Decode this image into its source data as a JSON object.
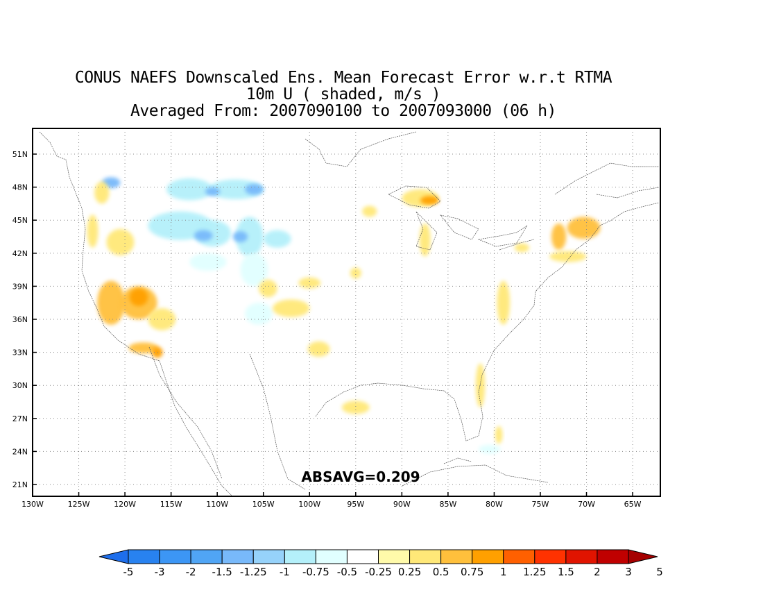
{
  "title": {
    "line1": "CONUS NAEFS Downscaled Ens. Mean Forecast Error w.r.t RTMA",
    "line2": "10m U ( shaded, m/s )",
    "line3": "Averaged From: 2007090100 to 2007093000 (06 h)"
  },
  "annotation": "ABSAVG=0.209",
  "lat_labels": [
    "51N",
    "48N",
    "45N",
    "42N",
    "39N",
    "36N",
    "33N",
    "30N",
    "27N",
    "24N",
    "21N"
  ],
  "lon_labels": [
    "130W",
    "125W",
    "120W",
    "115W",
    "110W",
    "105W",
    "100W",
    "95W",
    "90W",
    "85W",
    "80W",
    "75W",
    "70W",
    "65W"
  ],
  "colorbar": {
    "labels": [
      "-5",
      "-3",
      "-2",
      "-1.5",
      "-1.25",
      "-1",
      "-0.75",
      "-0.5",
      "-0.25",
      "0.25",
      "0.5",
      "0.75",
      "1",
      "1.25",
      "1.5",
      "2",
      "3",
      "5"
    ],
    "colors": [
      "#1e6eeb",
      "#2882f0",
      "#3c96f5",
      "#50a5f5",
      "#78b9fa",
      "#96d2fa",
      "#b4f0fa",
      "#e1ffff",
      "#ffffff",
      "#fffaaa",
      "#ffe878",
      "#ffc03c",
      "#ffa000",
      "#ff6000",
      "#ff3200",
      "#e11400",
      "#c00000",
      "#a50000"
    ]
  },
  "chart_data": {
    "type": "heatmap",
    "variable": "10m U",
    "units": "m/s",
    "annotation": "ABSAVG=0.209",
    "lat_range": [
      20,
      53
    ],
    "lon_range": [
      -130,
      -62
    ],
    "blobs": [
      {
        "lon": -121.5,
        "lat": 48.4,
        "rx": 1.0,
        "ry": 0.5,
        "value": -1.25
      },
      {
        "lon": -113.0,
        "lat": 47.8,
        "rx": 2.5,
        "ry": 1.0,
        "value": -0.75
      },
      {
        "lon": -108.0,
        "lat": 47.8,
        "rx": 3.0,
        "ry": 0.9,
        "value": -0.75
      },
      {
        "lon": -106.0,
        "lat": 47.8,
        "rx": 1.0,
        "ry": 0.5,
        "value": -1.25
      },
      {
        "lon": -110.5,
        "lat": 47.6,
        "rx": 0.8,
        "ry": 0.4,
        "value": -1.25
      },
      {
        "lon": -114.0,
        "lat": 44.5,
        "rx": 3.5,
        "ry": 1.3,
        "value": -0.75
      },
      {
        "lon": -110.5,
        "lat": 43.8,
        "rx": 2.0,
        "ry": 1.2,
        "value": -0.75
      },
      {
        "lon": -111.5,
        "lat": 43.6,
        "rx": 1.0,
        "ry": 0.5,
        "value": -1.25
      },
      {
        "lon": -106.5,
        "lat": 43.5,
        "rx": 1.5,
        "ry": 1.8,
        "value": -0.75
      },
      {
        "lon": -107.5,
        "lat": 43.5,
        "rx": 0.8,
        "ry": 0.5,
        "value": -1.25
      },
      {
        "lon": -103.5,
        "lat": 43.3,
        "rx": 1.5,
        "ry": 0.8,
        "value": -0.75
      },
      {
        "lon": -111.0,
        "lat": 41.2,
        "rx": 2.0,
        "ry": 0.8,
        "value": -0.5
      },
      {
        "lon": -106.0,
        "lat": 40.5,
        "rx": 1.5,
        "ry": 1.5,
        "value": -0.5
      },
      {
        "lon": -105.5,
        "lat": 36.5,
        "rx": 1.5,
        "ry": 1.0,
        "value": -0.5
      },
      {
        "lon": -108.0,
        "lat": 33.5,
        "rx": 3.0,
        "ry": 1.0,
        "value": -0.25
      },
      {
        "lon": -118.0,
        "lat": 35.0,
        "rx": 2.0,
        "ry": 1.2,
        "value": -0.25
      },
      {
        "lon": -115.0,
        "lat": 39.0,
        "rx": 3.0,
        "ry": 2.0,
        "value": -0.25
      },
      {
        "lon": -90.0,
        "lat": 33.5,
        "rx": 2.5,
        "ry": 0.7,
        "value": -0.25
      },
      {
        "lon": -89.0,
        "lat": 37.0,
        "rx": 1.5,
        "ry": 0.8,
        "value": -0.25
      },
      {
        "lon": -80.5,
        "lat": 27.5,
        "rx": 0.7,
        "ry": 2.0,
        "value": -0.25
      },
      {
        "lon": -80.5,
        "lat": 24.2,
        "rx": 1.2,
        "ry": 0.4,
        "value": -0.5
      },
      {
        "lon": -122.5,
        "lat": 47.5,
        "rx": 0.8,
        "ry": 1.0,
        "value": 0.5
      },
      {
        "lon": -123.5,
        "lat": 44.0,
        "rx": 0.6,
        "ry": 1.5,
        "value": 0.5
      },
      {
        "lon": -120.5,
        "lat": 43.0,
        "rx": 1.5,
        "ry": 1.2,
        "value": 0.5
      },
      {
        "lon": -121.5,
        "lat": 37.5,
        "rx": 1.5,
        "ry": 2.0,
        "value": 0.75
      },
      {
        "lon": -118.5,
        "lat": 37.5,
        "rx": 2.0,
        "ry": 1.5,
        "value": 0.75
      },
      {
        "lon": -118.5,
        "lat": 38.0,
        "rx": 1.0,
        "ry": 0.8,
        "value": 1.0
      },
      {
        "lon": -116.0,
        "lat": 36.0,
        "rx": 1.5,
        "ry": 1.0,
        "value": 0.5
      },
      {
        "lon": -118.0,
        "lat": 33.4,
        "rx": 1.6,
        "ry": 0.5,
        "value": 0.75
      },
      {
        "lon": -116.5,
        "lat": 33.0,
        "rx": 0.6,
        "ry": 0.5,
        "value": 1.0
      },
      {
        "lon": -104.5,
        "lat": 38.8,
        "rx": 1.0,
        "ry": 0.8,
        "value": 0.5
      },
      {
        "lon": -102.0,
        "lat": 37.0,
        "rx": 2.0,
        "ry": 0.8,
        "value": 0.5
      },
      {
        "lon": -100.0,
        "lat": 39.3,
        "rx": 1.2,
        "ry": 0.5,
        "value": 0.5
      },
      {
        "lon": -99.0,
        "lat": 33.3,
        "rx": 1.2,
        "ry": 0.7,
        "value": 0.5
      },
      {
        "lon": -95.0,
        "lat": 40.2,
        "rx": 0.6,
        "ry": 0.5,
        "value": 0.5
      },
      {
        "lon": -95.0,
        "lat": 28.0,
        "rx": 1.5,
        "ry": 0.6,
        "value": 0.5
      },
      {
        "lon": -88.0,
        "lat": 47.0,
        "rx": 2.0,
        "ry": 0.8,
        "value": 0.5
      },
      {
        "lon": -87.0,
        "lat": 46.8,
        "rx": 1.0,
        "ry": 0.4,
        "value": 1.0
      },
      {
        "lon": -87.5,
        "lat": 43.2,
        "rx": 0.6,
        "ry": 1.5,
        "value": 0.5
      },
      {
        "lon": -93.5,
        "lat": 45.8,
        "rx": 0.8,
        "ry": 0.5,
        "value": 0.5
      },
      {
        "lon": -73.0,
        "lat": 43.5,
        "rx": 0.8,
        "ry": 1.2,
        "value": 0.75
      },
      {
        "lon": -70.3,
        "lat": 44.3,
        "rx": 1.8,
        "ry": 1.0,
        "value": 0.75
      },
      {
        "lon": -72.0,
        "lat": 41.7,
        "rx": 2.0,
        "ry": 0.5,
        "value": 0.5
      },
      {
        "lon": -77.0,
        "lat": 42.5,
        "rx": 0.8,
        "ry": 0.4,
        "value": 0.5
      },
      {
        "lon": -79.0,
        "lat": 37.5,
        "rx": 0.7,
        "ry": 2.0,
        "value": 0.5
      },
      {
        "lon": -81.5,
        "lat": 30.0,
        "rx": 0.5,
        "ry": 2.0,
        "value": 0.5
      },
      {
        "lon": -79.5,
        "lat": 25.5,
        "rx": 0.4,
        "ry": 0.8,
        "value": 0.5
      }
    ]
  }
}
